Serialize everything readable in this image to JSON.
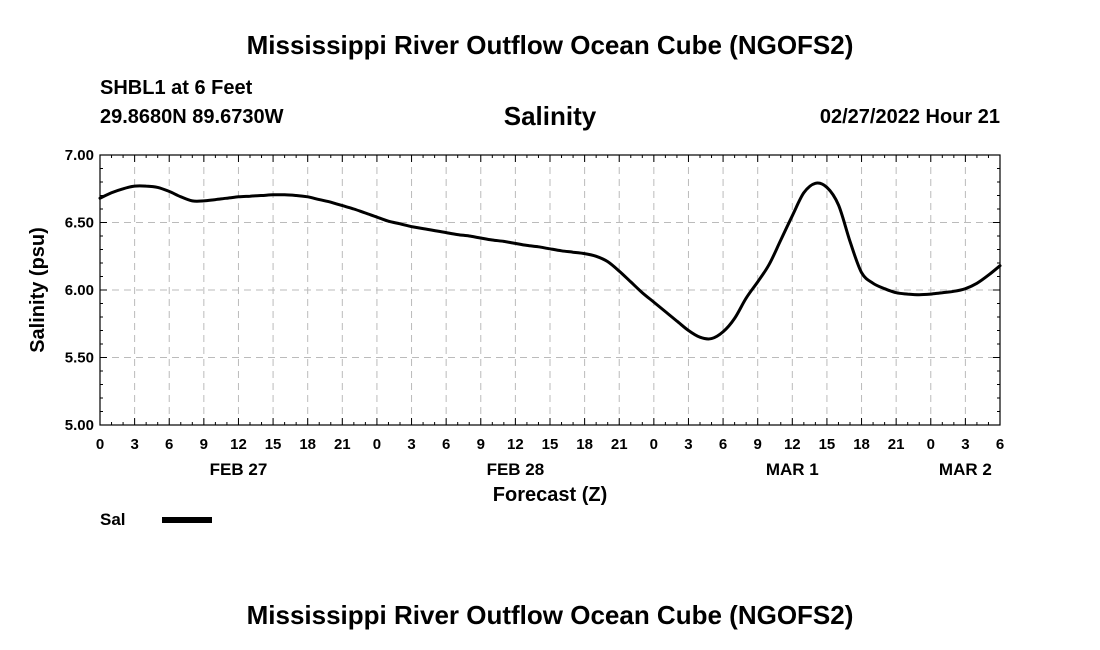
{
  "header": {
    "title": "Mississippi River Outflow Ocean Cube (NGOFS2)",
    "station": "SHBL1 at 6 Feet",
    "coordinates": "29.8680N  89.6730W",
    "variable": "Salinity",
    "issued": "02/27/2022 Hour 21"
  },
  "footer": {
    "title": "Mississippi River Outflow Ocean Cube (NGOFS2)"
  },
  "legend": {
    "series_label": "Sal"
  },
  "chart_data": {
    "type": "line",
    "xlabel": "Forecast (Z)",
    "ylabel": "Salinity (psu)",
    "ylim": [
      5.0,
      7.0
    ],
    "y_ticks": [
      "5.00",
      "5.50",
      "6.00",
      "6.50",
      "7.00"
    ],
    "x_ticks": [
      {
        "hour": 0,
        "label": "0"
      },
      {
        "hour": 3,
        "label": "3"
      },
      {
        "hour": 6,
        "label": "6"
      },
      {
        "hour": 9,
        "label": "9"
      },
      {
        "hour": 12,
        "label": "12"
      },
      {
        "hour": 15,
        "label": "15"
      },
      {
        "hour": 18,
        "label": "18"
      },
      {
        "hour": 21,
        "label": "21"
      },
      {
        "hour": 24,
        "label": "0"
      },
      {
        "hour": 27,
        "label": "3"
      },
      {
        "hour": 30,
        "label": "6"
      },
      {
        "hour": 33,
        "label": "9"
      },
      {
        "hour": 36,
        "label": "12"
      },
      {
        "hour": 39,
        "label": "15"
      },
      {
        "hour": 42,
        "label": "18"
      },
      {
        "hour": 45,
        "label": "21"
      },
      {
        "hour": 48,
        "label": "0"
      },
      {
        "hour": 51,
        "label": "3"
      },
      {
        "hour": 54,
        "label": "6"
      },
      {
        "hour": 57,
        "label": "9"
      },
      {
        "hour": 60,
        "label": "12"
      },
      {
        "hour": 63,
        "label": "15"
      },
      {
        "hour": 66,
        "label": "18"
      },
      {
        "hour": 69,
        "label": "21"
      },
      {
        "hour": 72,
        "label": "0"
      },
      {
        "hour": 75,
        "label": "3"
      },
      {
        "hour": 78,
        "label": "6"
      }
    ],
    "date_labels": [
      {
        "hour": 12,
        "label": "FEB 27"
      },
      {
        "hour": 36,
        "label": "FEB 28"
      },
      {
        "hour": 60,
        "label": "MAR 1"
      },
      {
        "hour": 75,
        "label": "MAR 2"
      }
    ],
    "xlim": [
      0,
      78
    ],
    "grid": true,
    "series": [
      {
        "name": "Sal",
        "color": "#000000",
        "x": [
          0,
          1,
          2,
          3,
          4,
          5,
          6,
          7,
          8,
          9,
          10,
          11,
          12,
          13,
          14,
          15,
          16,
          17,
          18,
          19,
          20,
          21,
          22,
          23,
          24,
          25,
          26,
          27,
          28,
          29,
          30,
          31,
          32,
          33,
          34,
          35,
          36,
          37,
          38,
          39,
          40,
          41,
          42,
          43,
          44,
          45,
          46,
          47,
          48,
          49,
          50,
          51,
          52,
          53,
          54,
          55,
          56,
          57,
          58,
          59,
          60,
          61,
          62,
          63,
          64,
          65,
          66,
          67,
          68,
          69,
          70,
          71,
          72,
          73,
          74,
          75,
          76,
          77,
          78
        ],
        "values": [
          6.68,
          6.72,
          6.75,
          6.77,
          6.77,
          6.76,
          6.73,
          6.69,
          6.66,
          6.66,
          6.67,
          6.68,
          6.69,
          6.695,
          6.7,
          6.705,
          6.705,
          6.7,
          6.69,
          6.67,
          6.65,
          6.625,
          6.6,
          6.57,
          6.54,
          6.51,
          6.49,
          6.47,
          6.455,
          6.44,
          6.425,
          6.41,
          6.4,
          6.385,
          6.37,
          6.36,
          6.345,
          6.33,
          6.32,
          6.305,
          6.29,
          6.28,
          6.27,
          6.25,
          6.21,
          6.14,
          6.06,
          5.98,
          5.91,
          5.84,
          5.77,
          5.7,
          5.65,
          5.64,
          5.69,
          5.79,
          5.94,
          6.06,
          6.19,
          6.37,
          6.55,
          6.72,
          6.79,
          6.76,
          6.63,
          6.36,
          6.13,
          6.05,
          6.01,
          5.98,
          5.97,
          5.965,
          5.97,
          5.98,
          5.99,
          6.01,
          6.05,
          6.11,
          6.18
        ]
      }
    ]
  }
}
